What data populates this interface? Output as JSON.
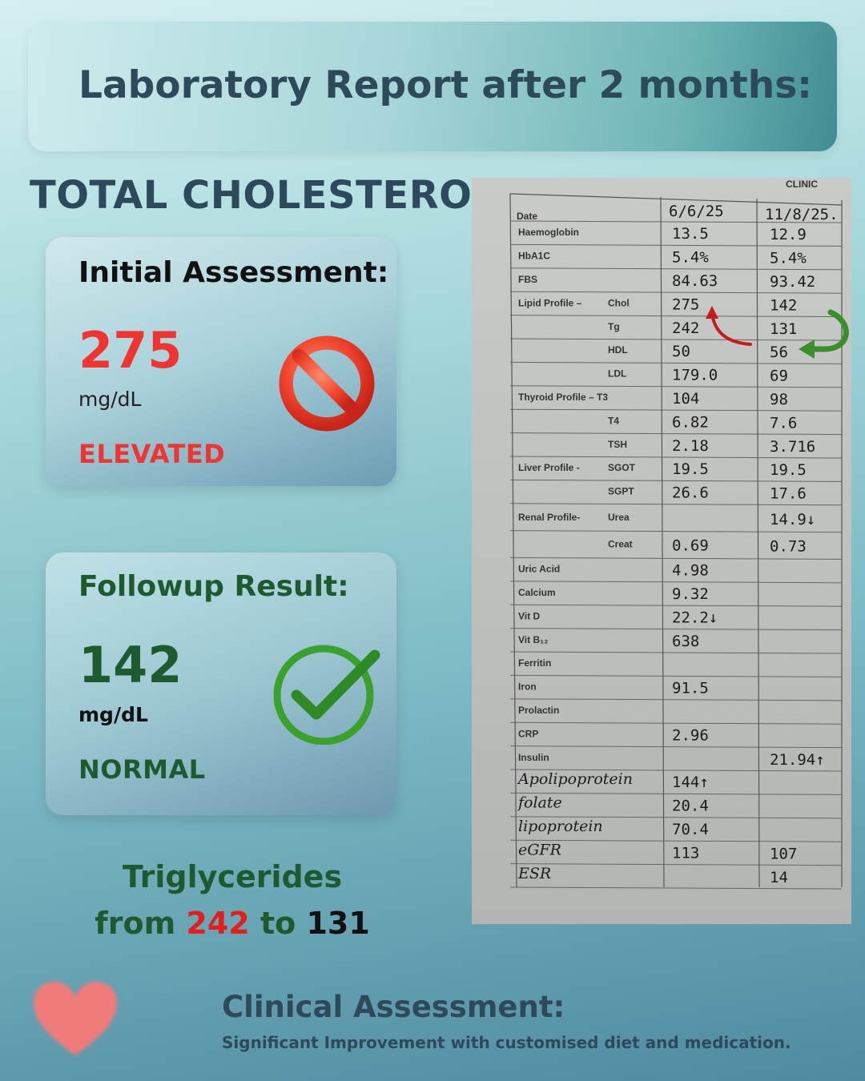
{
  "header": {
    "title": "Laboratory Report after 2 months:"
  },
  "section": {
    "title": "TOTAL CHOLESTEROL"
  },
  "initial": {
    "title": "Initial Assessment:",
    "value": "275",
    "unit": "mg/dL",
    "status": "ELEVATED",
    "icon": "prohibited-icon",
    "color": "#ef3434"
  },
  "followup": {
    "title": "Followup Result:",
    "value": "142",
    "unit": "mg/dL",
    "status": "NORMAL",
    "icon": "check-mark-icon",
    "color": "#1e5a30"
  },
  "triglycerides": {
    "label": "Triglycerides",
    "from_word": "from",
    "from_value": "242",
    "to_word": "to",
    "to_value": "131"
  },
  "report_photo": {
    "clinic": "CLINIC",
    "header_label": "Date",
    "date_1": "6/6/25",
    "date_2": "11/8/25.",
    "rows": [
      {
        "label": "Haemoglobin",
        "v1": "13.5",
        "v2": "12.9"
      },
      {
        "label": "HbA1C",
        "v1": "5.4%",
        "v2": "5.4%"
      },
      {
        "label": "FBS",
        "v1": "84.63",
        "v2": "93.42"
      },
      {
        "label": "Lipid Profile –",
        "sub": "Chol",
        "v1": "275",
        "v2": "142"
      },
      {
        "label": "",
        "sub": "Tg",
        "v1": "242",
        "v2": "131"
      },
      {
        "label": "",
        "sub": "HDL",
        "v1": "50",
        "v2": "56"
      },
      {
        "label": "",
        "sub": "LDL",
        "v1": "179.0",
        "v2": "69"
      },
      {
        "label": "Thyroid Profile – T3",
        "v1": "104",
        "v2": "98"
      },
      {
        "label": "",
        "sub": "T4",
        "v1": "6.82",
        "v2": "7.6"
      },
      {
        "label": "",
        "sub": "TSH",
        "v1": "2.18",
        "v2": "3.716"
      },
      {
        "label": "Liver Profile -",
        "sub": "SGOT",
        "v1": "19.5",
        "v2": "19.5"
      },
      {
        "label": "",
        "sub": "SGPT",
        "v1": "26.6",
        "v2": "17.6"
      },
      {
        "label": "Renal Profile-",
        "sub": "Urea",
        "v1": "",
        "v2": "14.9↓"
      },
      {
        "label": "",
        "sub": "Creat",
        "v1": "0.69",
        "v2": "0.73"
      },
      {
        "label": "Uric Acid",
        "v1": "4.98",
        "v2": ""
      },
      {
        "label": "Calcium",
        "v1": "9.32",
        "v2": ""
      },
      {
        "label": "Vit D",
        "v1": "22.2↓",
        "v2": ""
      },
      {
        "label": "Vit B₁₂",
        "v1": "638",
        "v2": ""
      },
      {
        "label": "Ferritin",
        "v1": "",
        "v2": ""
      },
      {
        "label": "Iron",
        "v1": "91.5",
        "v2": ""
      },
      {
        "label": "Prolactin",
        "v1": "",
        "v2": ""
      },
      {
        "label": "CRP",
        "v1": "2.96",
        "v2": ""
      },
      {
        "label": "Insulin",
        "v1": "",
        "v2": "21.94↑"
      }
    ],
    "handwritten_rows": [
      {
        "label": "Apolipoprotein",
        "v1": "144↑",
        "v2": ""
      },
      {
        "label": "folate",
        "v1": "20.4",
        "v2": ""
      },
      {
        "label": "lipoprotein",
        "v1": "70.4",
        "v2": ""
      },
      {
        "label": "eGFR",
        "v1": "113",
        "v2": "107"
      },
      {
        "label": "ESR",
        "v1": "",
        "v2": "14"
      }
    ]
  },
  "assessment": {
    "title": "Clinical Assessment:",
    "text": "Significant Improvement with customised diet and medication."
  },
  "decor": {
    "heart_icon": "heart-icon",
    "heart_color": "#f07b7b"
  }
}
